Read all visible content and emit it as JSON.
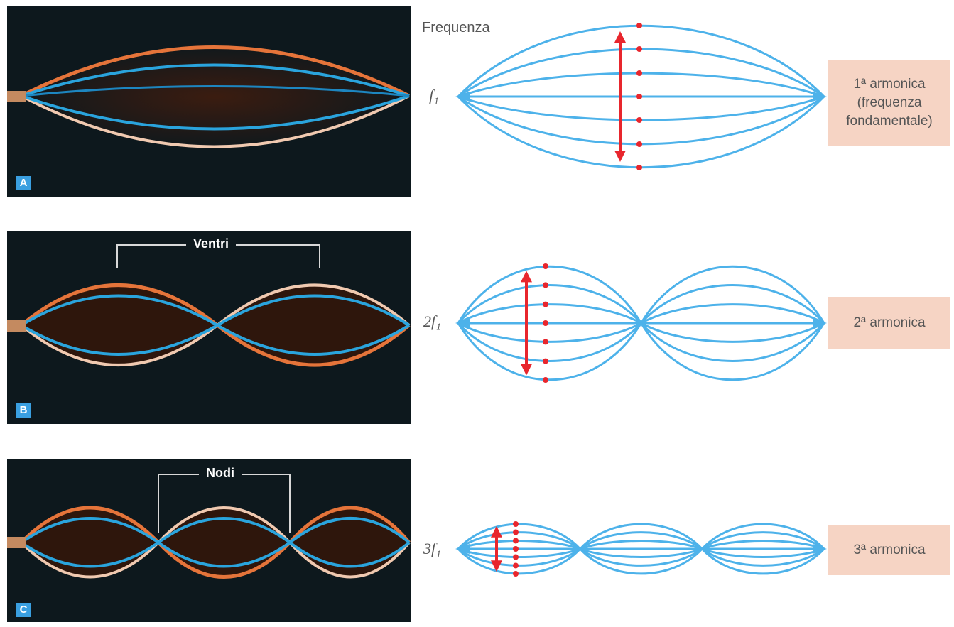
{
  "diagram": {
    "frequency_heading": "Frequenza",
    "panels": [
      {
        "badge": "A",
        "callout": ""
      },
      {
        "badge": "B",
        "callout": "Ventri"
      },
      {
        "badge": "C",
        "callout": "Nodi"
      }
    ],
    "harmonics": [
      {
        "frequency": "f₁",
        "label_line1": "1ª armonica",
        "label_line2": "(frequenza",
        "label_line3": "fondamentale)",
        "loops": 1
      },
      {
        "frequency": "2f₁",
        "label_line1": "2ª armonica",
        "label_line2": "",
        "label_line3": "",
        "loops": 2
      },
      {
        "frequency": "3f₁",
        "label_line1": "3ª armonica",
        "label_line2": "",
        "label_line3": "",
        "loops": 3
      }
    ],
    "colors": {
      "string": "#4db2ea",
      "arrow": "#e8262d",
      "label_box": "#f6d4c4",
      "photo_bg": "#0d181d",
      "photo_orange": "#e5743a",
      "photo_blue": "#2aa4dd"
    }
  }
}
